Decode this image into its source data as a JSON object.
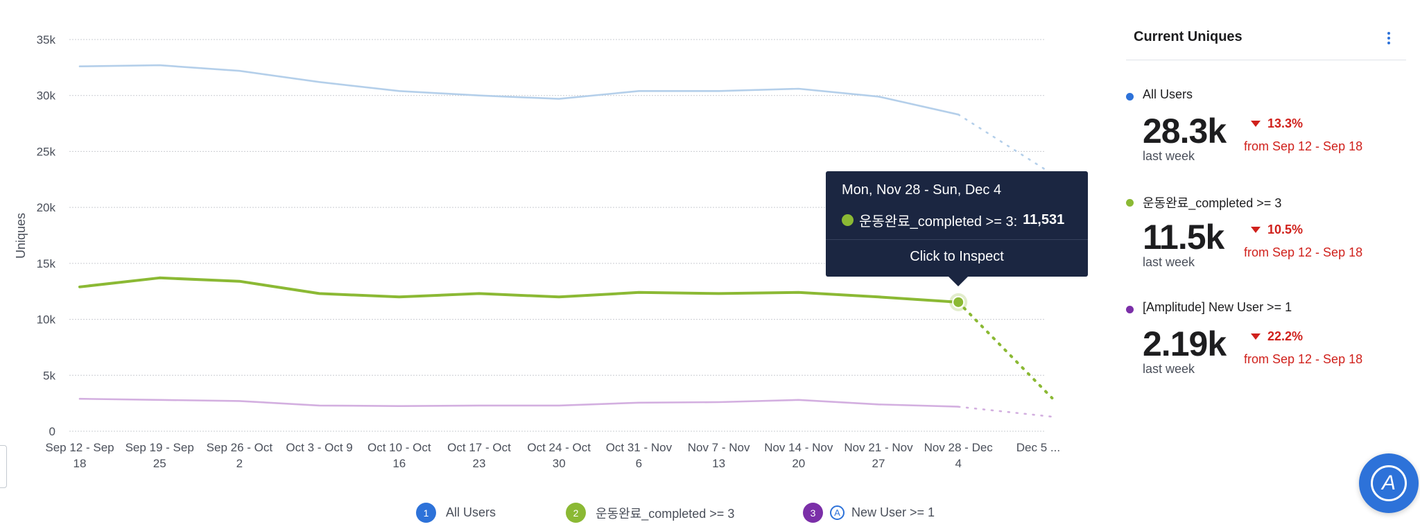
{
  "chart_data": {
    "type": "line",
    "title": "",
    "xlabel": "",
    "ylabel": "Uniques",
    "ylim": [
      0,
      35000
    ],
    "yticks": [
      "35k",
      "30k",
      "25k",
      "20k",
      "15k",
      "10k",
      "5k",
      "0"
    ],
    "ytick_values": [
      35000,
      30000,
      25000,
      20000,
      15000,
      10000,
      5000,
      0
    ],
    "grid": true,
    "categories": [
      [
        "Sep 12 - Sep",
        "18"
      ],
      [
        "Sep 19 - Sep",
        "25"
      ],
      [
        "Sep 26 - Oct",
        "2"
      ],
      [
        "Oct 3 - Oct 9",
        ""
      ],
      [
        "Oct 10 - Oct",
        "16"
      ],
      [
        "Oct 17 - Oct",
        "23"
      ],
      [
        "Oct 24 - Oct",
        "30"
      ],
      [
        "Oct 31 - Nov",
        "6"
      ],
      [
        "Nov 7 - Nov",
        "13"
      ],
      [
        "Nov 14 - Nov",
        "20"
      ],
      [
        "Nov 21 - Nov",
        "27"
      ],
      [
        "Nov 28 - Dec",
        "4"
      ],
      [
        "Dec 5 ...",
        ""
      ]
    ],
    "series": [
      {
        "name": "All Users",
        "color": "#b4cfea",
        "values": [
          32600,
          32700,
          32200,
          31200,
          30400,
          30000,
          29700,
          30400,
          30400,
          30600,
          29900,
          28300,
          23000
        ],
        "incomplete_last": true
      },
      {
        "name": "운동완료_completed >= 3",
        "color": "#8bb934",
        "values": [
          12900,
          13700,
          13400,
          12300,
          12000,
          12300,
          12000,
          12400,
          12300,
          12400,
          12000,
          11531,
          4700
        ],
        "incomplete_last": true
      },
      {
        "name": "[Amplitude] New User >= 1",
        "color": "#d3afe0",
        "values": [
          2900,
          2800,
          2700,
          2300,
          2250,
          2300,
          2300,
          2550,
          2600,
          2800,
          2400,
          2190,
          1300
        ],
        "incomplete_last": true
      }
    ],
    "highlight": {
      "series": 1,
      "index": 11
    }
  },
  "tooltip": {
    "date": "Mon, Nov 28 - Sun, Dec 4",
    "series_label": "운동완료_completed >= 3:",
    "value": "11,531",
    "dot_color": "#8bb934",
    "action": "Click to Inspect"
  },
  "legend": [
    {
      "number": "1",
      "label": "All Users",
      "color": "#2d72d9"
    },
    {
      "number": "2",
      "label": "운동완료_completed >= 3",
      "color": "#8bb934"
    },
    {
      "number": "3",
      "label": "New User >= 1",
      "color": "#7b2fa8",
      "logo_icon": "amplitude-logo-icon"
    }
  ],
  "side_panel": {
    "title": "Current Uniques",
    "menu_icon": "kebab-menu-icon",
    "metrics": [
      {
        "name": "All Users",
        "color": "#2d72d9",
        "value": "28.3k",
        "period": "last week",
        "change": "13.3%",
        "direction": "down",
        "compare": "from Sep 12 - Sep 18"
      },
      {
        "name": "운동완료_completed >= 3",
        "color": "#8bb934",
        "value": "11.5k",
        "period": "last week",
        "change": "10.5%",
        "direction": "down",
        "compare": "from Sep 12 - Sep 18"
      },
      {
        "name": "[Amplitude] New User >= 1",
        "color": "#7b2fa8",
        "value": "2.19k",
        "period": "last week",
        "change": "22.2%",
        "direction": "down",
        "compare": "from Sep 12 - Sep 18"
      }
    ]
  },
  "fab_icon": "amplitude-logo-icon"
}
